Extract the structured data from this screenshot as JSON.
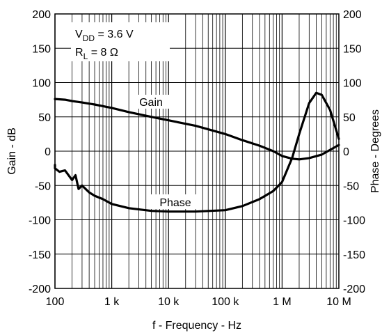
{
  "chart_data": {
    "type": "line",
    "title": "",
    "xlabel": "f - Frequency - Hz",
    "ylabel_left": "Gain - dB",
    "ylabel_right": "Phase - Degrees",
    "x_scale": "log",
    "xlim": [
      100,
      10000000
    ],
    "ylim": [
      -200,
      200
    ],
    "y_right_lim": [
      -200,
      200
    ],
    "grid": true,
    "x_ticks": [
      {
        "value": 100,
        "label": "100"
      },
      {
        "value": 1000,
        "label": "1 k"
      },
      {
        "value": 10000,
        "label": "10 k"
      },
      {
        "value": 100000,
        "label": "100 k"
      },
      {
        "value": 1000000,
        "label": "1 M"
      },
      {
        "value": 10000000,
        "label": "10 M"
      }
    ],
    "y_ticks": [
      {
        "value": 200,
        "label": "200"
      },
      {
        "value": 150,
        "label": "150"
      },
      {
        "value": 100,
        "label": "100"
      },
      {
        "value": 50,
        "label": "50"
      },
      {
        "value": 0,
        "label": "0"
      },
      {
        "value": -50,
        "label": "-50"
      },
      {
        "value": -100,
        "label": "-100"
      },
      {
        "value": -150,
        "label": "-150"
      },
      {
        "value": -200,
        "label": "-200"
      }
    ],
    "annotations": {
      "vdd": {
        "main": "V",
        "sub": "DD",
        "rest": " = 3.6 V"
      },
      "rl": {
        "main": "R",
        "sub": "L",
        "rest": " = 8 Ω"
      },
      "gain_label": "Gain",
      "phase_label": "Phase"
    },
    "series": [
      {
        "name": "Gain",
        "x": [
          80,
          100,
          150,
          200,
          300,
          500,
          1000,
          2000,
          5000,
          10000,
          30000,
          100000,
          200000,
          400000,
          700000,
          1000000,
          1500000,
          2000000,
          3000000,
          5000000,
          10000000
        ],
        "y": [
          76,
          76,
          75,
          73,
          71,
          68,
          63,
          57,
          50,
          45,
          37,
          25,
          16,
          8,
          0,
          -7,
          -11,
          -12,
          -10,
          -5,
          9
        ]
      },
      {
        "name": "Phase",
        "x": [
          80,
          100,
          120,
          150,
          200,
          230,
          260,
          300,
          400,
          500,
          700,
          1000,
          2000,
          5000,
          10000,
          30000,
          100000,
          200000,
          400000,
          700000,
          1000000,
          1500000,
          2000000,
          3000000,
          4000000,
          5000000,
          7000000,
          10000000
        ],
        "y": [
          -20,
          -25,
          -30,
          -28,
          -42,
          -35,
          -55,
          -50,
          -60,
          -65,
          -70,
          -77,
          -83,
          -87,
          -88,
          -88,
          -86,
          -80,
          -70,
          -58,
          -45,
          -10,
          25,
          70,
          85,
          82,
          60,
          18
        ]
      }
    ]
  }
}
